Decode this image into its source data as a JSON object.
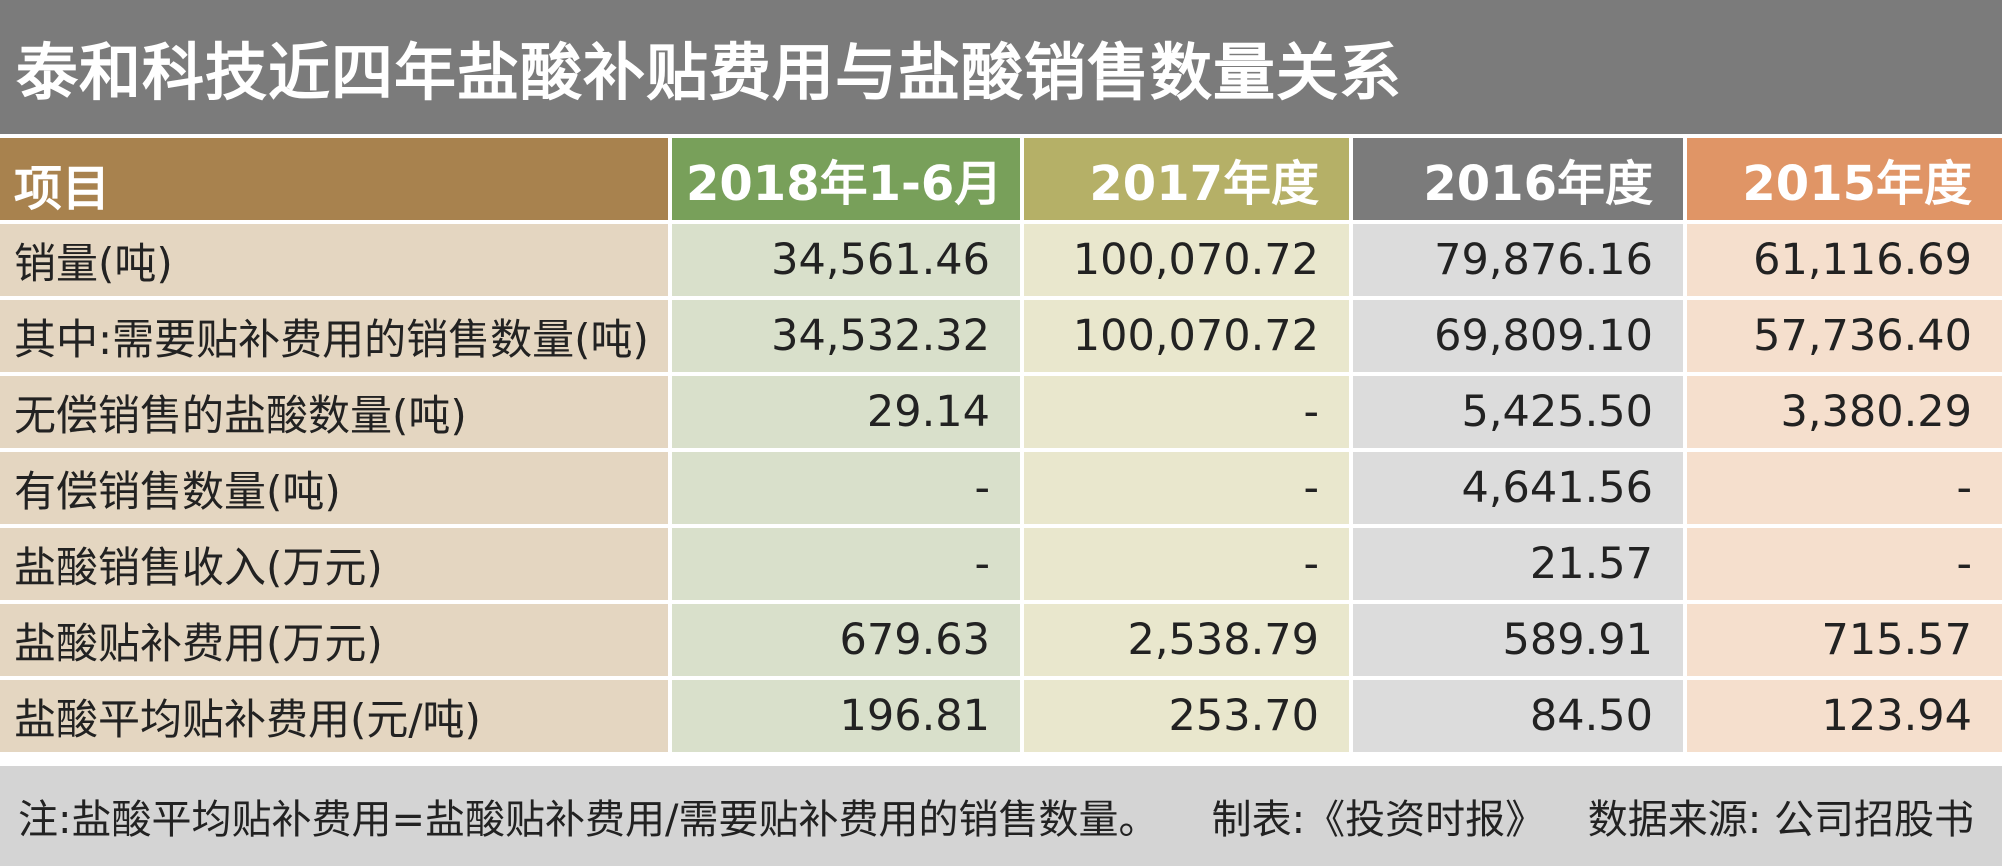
{
  "title": "泰和科技近四年盐酸补贴费用与盐酸销售数量关系",
  "colors": {
    "title_bg": "#7b7b7b",
    "item_header": "#a8824e",
    "item_body": "#e4d6c1",
    "periods": [
      {
        "header": "#78a05a",
        "body": "#d9e0cb"
      },
      {
        "header": "#b5b067",
        "body": "#e9e7cd"
      },
      {
        "header": "#7b7b7b",
        "body": "#dcdcdc"
      },
      {
        "header": "#e09566",
        "body": "#f5dfcd"
      }
    ],
    "footer_bg": "#d4d4d4"
  },
  "chart_data": {
    "type": "table",
    "title": "泰和科技近四年盐酸补贴费用与盐酸销售数量关系",
    "columns": [
      "项目",
      "2018年1-6月",
      "2017年度",
      "2016年度",
      "2015年度"
    ],
    "rows": [
      [
        "销量(吨)",
        "34,561.46",
        "100,070.72",
        "79,876.16",
        "61,116.69"
      ],
      [
        "其中:需要贴补费用的销售数量(吨)",
        "34,532.32",
        "100,070.72",
        "69,809.10",
        "57,736.40"
      ],
      [
        "无偿销售的盐酸数量(吨)",
        "29.14",
        "-",
        "5,425.50",
        "3,380.29"
      ],
      [
        "有偿销售数量(吨)",
        "-",
        "-",
        "4,641.56",
        "-"
      ],
      [
        "盐酸销售收入(万元)",
        "-",
        "-",
        "21.57",
        "-"
      ],
      [
        "盐酸贴补费用(万元)",
        "679.63",
        "2,538.79",
        "589.91",
        "715.57"
      ],
      [
        "盐酸平均贴补费用(元/吨)",
        "196.81",
        "253.70",
        "84.50",
        "123.94"
      ]
    ]
  },
  "footer": {
    "note": "注:盐酸平均贴补费用=盐酸贴补费用/需要贴补费用的销售数量。",
    "maker": "制表:《投资时报》",
    "source": "数据来源: 公司招股书"
  }
}
